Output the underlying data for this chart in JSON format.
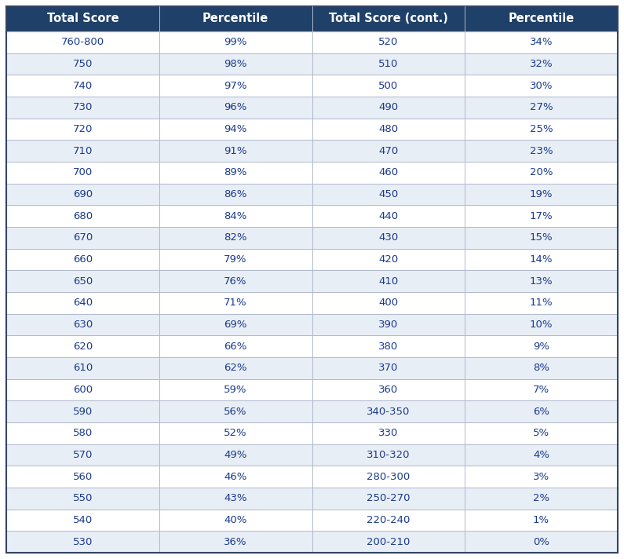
{
  "col1_header": "Total Score",
  "col2_header": "Percentile",
  "col3_header": "Total Score (cont.)",
  "col4_header": "Percentile",
  "left_scores": [
    "760-800",
    "750",
    "740",
    "730",
    "720",
    "710",
    "700",
    "690",
    "680",
    "670",
    "660",
    "650",
    "640",
    "630",
    "620",
    "610",
    "600",
    "590",
    "580",
    "570",
    "560",
    "550",
    "540",
    "530"
  ],
  "left_percentiles": [
    "99%",
    "98%",
    "97%",
    "96%",
    "94%",
    "91%",
    "89%",
    "86%",
    "84%",
    "82%",
    "79%",
    "76%",
    "71%",
    "69%",
    "66%",
    "62%",
    "59%",
    "56%",
    "52%",
    "49%",
    "46%",
    "43%",
    "40%",
    "36%"
  ],
  "right_scores": [
    "520",
    "510",
    "500",
    "490",
    "480",
    "470",
    "460",
    "450",
    "440",
    "430",
    "420",
    "410",
    "400",
    "390",
    "380",
    "370",
    "360",
    "340-350",
    "330",
    "310-320",
    "280-300",
    "250-270",
    "220-240",
    "200-210"
  ],
  "right_percentiles": [
    "34%",
    "32%",
    "30%",
    "27%",
    "25%",
    "23%",
    "20%",
    "19%",
    "17%",
    "15%",
    "14%",
    "13%",
    "11%",
    "10%",
    "9%",
    "8%",
    "7%",
    "6%",
    "5%",
    "4%",
    "3%",
    "2%",
    "1%",
    "0%"
  ],
  "header_bg": "#1f4068",
  "header_text": "#ffffff",
  "row_bg_even": "#ffffff",
  "row_bg_odd": "#e8eef5",
  "data_text_color": "#1a3a8c",
  "border_color": "#b0b8cc",
  "font_size_header": 10.5,
  "font_size_data": 9.5,
  "fig_width": 7.95,
  "fig_height": 7.12
}
